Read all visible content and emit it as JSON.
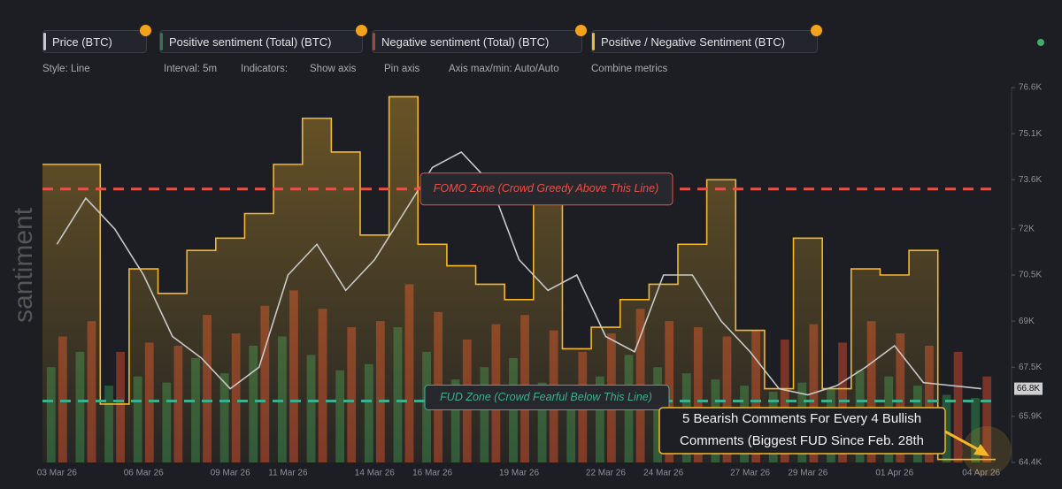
{
  "chart_data": {
    "type": "line",
    "legend": [
      "Price (BTC)",
      "Positive sentiment (Total) (BTC)",
      "Negative sentiment (Total) (BTC)",
      "Positive / Negative Sentiment (BTC)"
    ],
    "toolbar": {
      "style": "Style: Line",
      "interval": "Interval: 5m",
      "indicators": "Indicators:",
      "show_axis": "Show axis",
      "pin_axis": "Pin axis",
      "axis_minmax": "Axis max/min: Auto/Auto",
      "combine": "Combine metrics"
    },
    "watermark": "santiment",
    "categories": [
      "03 Mar 26",
      null,
      null,
      "06 Mar 26",
      null,
      null,
      "09 Mar 26",
      null,
      "11 Mar 26",
      null,
      null,
      "14 Mar 26",
      null,
      "16 Mar 26",
      null,
      null,
      "19 Mar 26",
      null,
      null,
      "22 Mar 26",
      null,
      "24 Mar 26",
      null,
      null,
      "27 Mar 26",
      null,
      "29 Mar 26",
      null,
      null,
      "01 Apr 26",
      null,
      null,
      "04 Apr 26"
    ],
    "series": [
      {
        "name": "Price (BTC)",
        "color": "#c9c9c9",
        "style": "line",
        "values": [
          71500,
          73000,
          72000,
          70500,
          68500,
          67800,
          66800,
          67500,
          70500,
          71500,
          70000,
          71000,
          72500,
          74000,
          74500,
          73500,
          71000,
          70000,
          70500,
          68500,
          68000,
          70500,
          70500,
          69000,
          68000,
          66800,
          66600,
          66900,
          67500,
          68200,
          67000,
          66900,
          66800
        ]
      },
      {
        "name": "Positive sentiment (Total) (BTC)",
        "color": "#2f7a4a",
        "style": "bars",
        "values": [
          67500,
          68000,
          66900,
          67200,
          67000,
          67800,
          67300,
          68200,
          68500,
          67900,
          67400,
          67600,
          68800,
          68000,
          67100,
          67500,
          67800,
          67000,
          66800,
          67200,
          67900,
          67500,
          67300,
          67100,
          66900,
          66700,
          67000,
          66800,
          67400,
          67200,
          66900,
          66600,
          66500
        ]
      },
      {
        "name": "Negative sentiment (Total) (BTC)",
        "color": "#b5432b",
        "style": "bars",
        "values": [
          68500,
          69000,
          68000,
          68300,
          68200,
          69200,
          68600,
          69500,
          70000,
          69400,
          68800,
          69000,
          70200,
          69300,
          68400,
          68900,
          69200,
          68700,
          68000,
          68600,
          69400,
          69000,
          68800,
          68500,
          68700,
          68400,
          68900,
          68300,
          69000,
          68600,
          68200,
          68000,
          67200
        ]
      },
      {
        "name": "Positive / Negative Sentiment (BTC)",
        "color": "#f5b72a",
        "style": "step",
        "values": [
          74100,
          74100,
          66300,
          70700,
          69900,
          71300,
          71700,
          72500,
          74100,
          75600,
          74500,
          71800,
          76300,
          71500,
          70800,
          70200,
          69700,
          73400,
          68100,
          68800,
          69700,
          70200,
          71500,
          73600,
          68700,
          66800,
          71700,
          66800,
          70700,
          70500,
          71300,
          64500,
          64500
        ]
      }
    ],
    "ylim": [
      64400,
      76600
    ],
    "yticks": [
      {
        "value": 76600,
        "label": "76.6K"
      },
      {
        "value": 75100,
        "label": "75.1K"
      },
      {
        "value": 73600,
        "label": "73.6K"
      },
      {
        "value": 72000,
        "label": "72K"
      },
      {
        "value": 70500,
        "label": "70.5K"
      },
      {
        "value": 69000,
        "label": "69K"
      },
      {
        "value": 67500,
        "label": "67.5K"
      },
      {
        "value": 65900,
        "label": "65.9K"
      },
      {
        "value": 64400,
        "label": "64.4K"
      }
    ],
    "last_price": {
      "value": 66800,
      "label": "66.8K"
    },
    "annotations": [
      {
        "text": "FOMO Zone (Crowd Greedy Above This Line)",
        "value": 73300,
        "color": "#e8504a"
      },
      {
        "text": "FUD Zone (Crowd Fearful Below This Line)",
        "value": 66400,
        "color": "#3fae8c"
      }
    ],
    "callout": [
      "5 Bearish Comments For Every 4 Bullish",
      "Comments (Biggest FUD Since Feb. 28th"
    ]
  }
}
